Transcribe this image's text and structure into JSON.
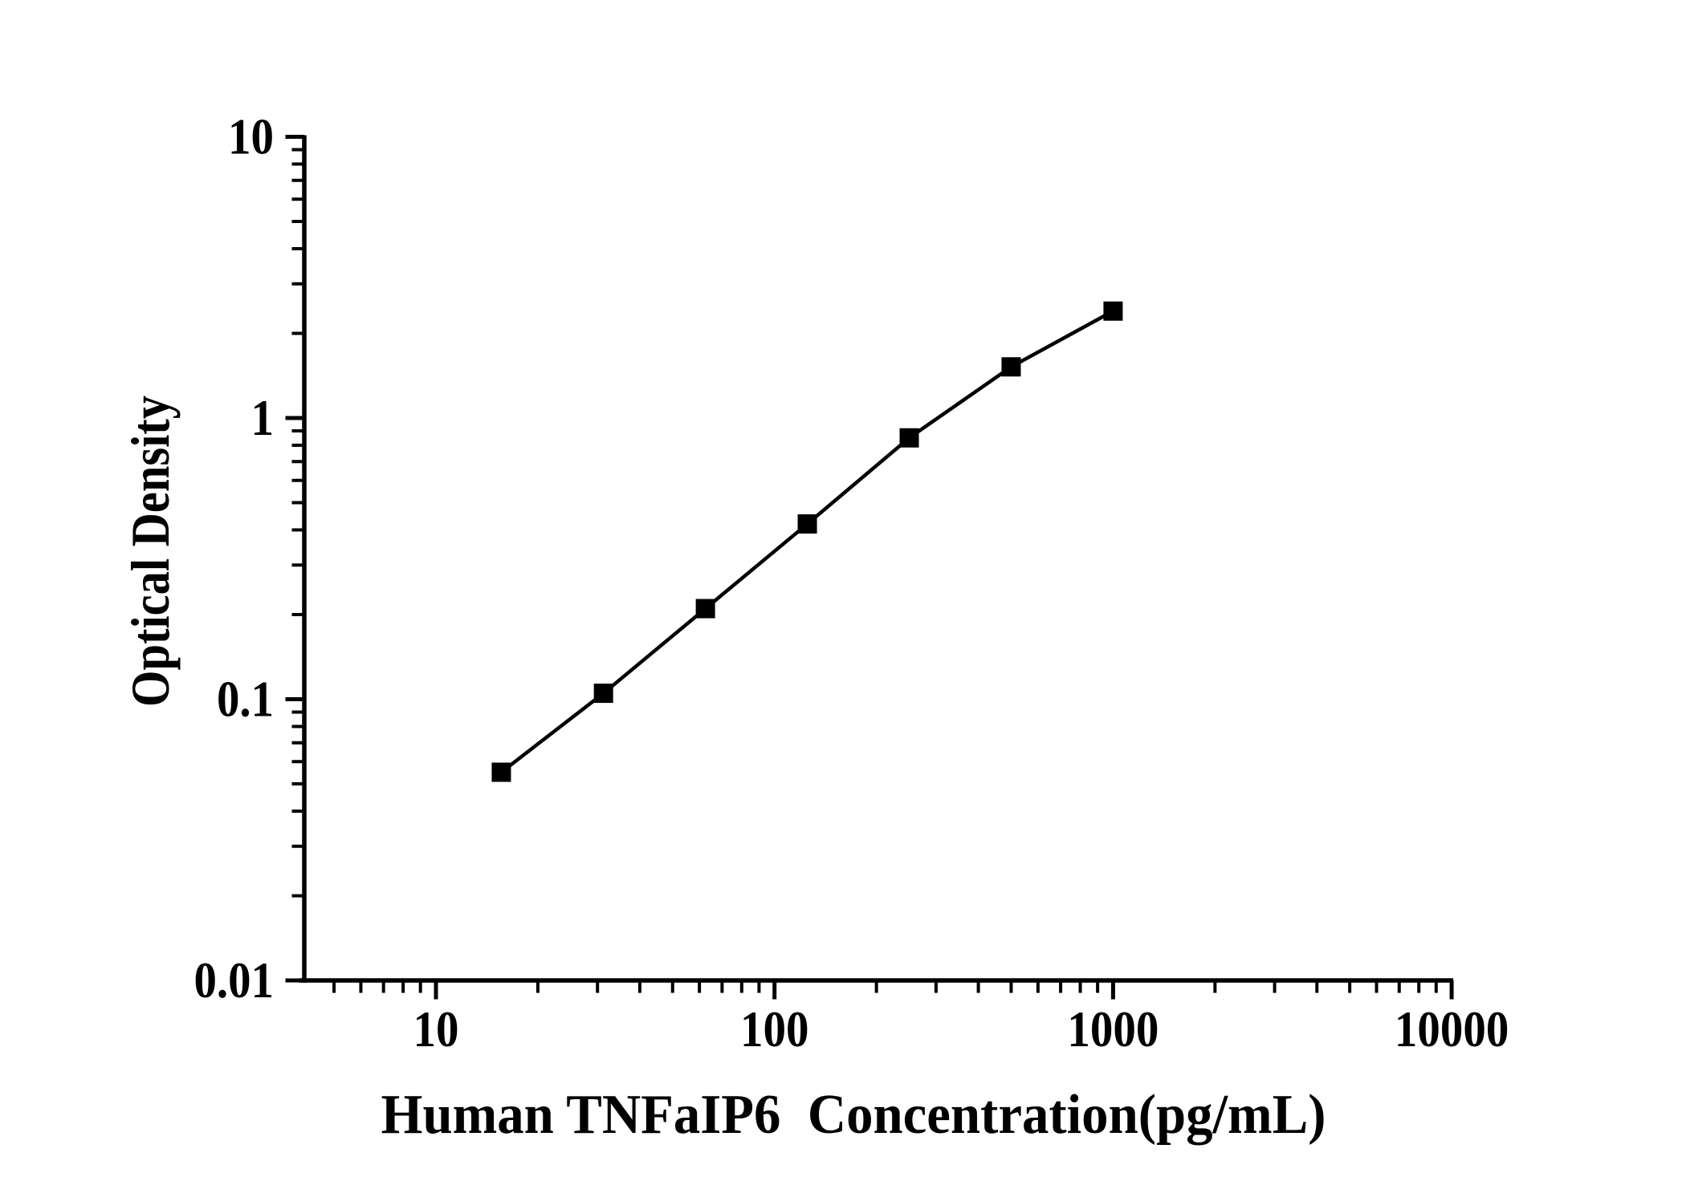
{
  "figure": {
    "background_color": "#ffffff",
    "foreground_color": "#000000"
  },
  "chart_data": {
    "type": "line",
    "title": "",
    "xlabel": "Human TNFaIP6  Concentration(pg/mL)",
    "ylabel": "Optical Density",
    "x_scale": "log",
    "y_scale": "log",
    "xlim": [
      4,
      10000
    ],
    "ylim": [
      0.01,
      10
    ],
    "x_major_ticks": [
      10,
      100,
      1000,
      10000
    ],
    "x_major_tick_labels": [
      "10",
      "100",
      "1000",
      "10000"
    ],
    "y_major_ticks": [
      0.01,
      0.1,
      1,
      10
    ],
    "y_major_tick_labels": [
      "0.01",
      "0.1",
      "1",
      "10"
    ],
    "grid": false,
    "legend": null,
    "series": [
      {
        "name": "standard-curve",
        "marker": "filled-square",
        "marker_color": "#000000",
        "line_color": "#000000",
        "x": [
          15.6,
          31.25,
          62.5,
          125,
          250,
          500,
          1000
        ],
        "y": [
          0.055,
          0.105,
          0.21,
          0.42,
          0.85,
          1.52,
          2.4
        ]
      }
    ]
  }
}
